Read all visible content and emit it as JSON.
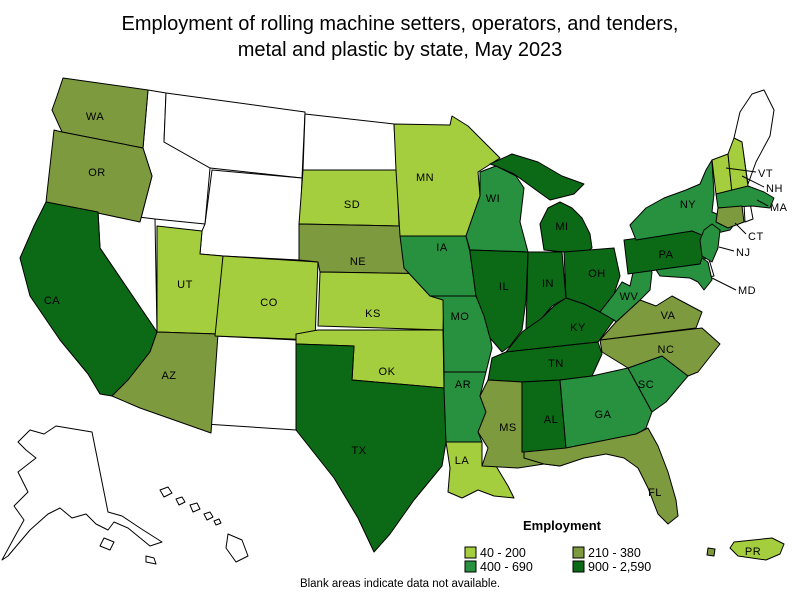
{
  "title": {
    "line1": "Employment of rolling machine setters, operators, and tenders,",
    "line2": "metal and plastic by state, May 2023"
  },
  "legend": {
    "title": "Employment",
    "items": [
      {
        "label": "40 - 200",
        "color": "#A5CE3F"
      },
      {
        "label": "210 - 380",
        "color": "#7D9A3E"
      },
      {
        "label": "400 - 690",
        "color": "#28913F"
      },
      {
        "label": "900 - 2,590",
        "color": "#0C6A16"
      }
    ]
  },
  "footnote": "Blank areas indicate data not available.",
  "map": {
    "background": "#FFFFFF",
    "border_color": "#000000",
    "no_data_fill": "#FFFFFF",
    "states": [
      {
        "abbr": "AK",
        "range": "no data"
      },
      {
        "abbr": "HI",
        "range": "no data"
      },
      {
        "abbr": "ID",
        "range": "no data"
      },
      {
        "abbr": "MT",
        "range": "no data"
      },
      {
        "abbr": "WY",
        "range": "no data"
      },
      {
        "abbr": "NV",
        "range": "no data"
      },
      {
        "abbr": "NM",
        "range": "no data"
      },
      {
        "abbr": "ND",
        "range": "no data"
      },
      {
        "abbr": "ME",
        "range": "no data"
      },
      {
        "abbr": "RI",
        "range": "no data"
      },
      {
        "abbr": "DE",
        "range": "no data"
      },
      {
        "abbr": "WA",
        "range": "210 - 380"
      },
      {
        "abbr": "OR",
        "range": "210 - 380"
      },
      {
        "abbr": "CA",
        "range": "900 - 2,590"
      },
      {
        "abbr": "UT",
        "range": "40 - 200"
      },
      {
        "abbr": "AZ",
        "range": "210 - 380"
      },
      {
        "abbr": "CO",
        "range": "40 - 200"
      },
      {
        "abbr": "SD",
        "range": "40 - 200"
      },
      {
        "abbr": "NE",
        "range": "210 - 380"
      },
      {
        "abbr": "KS",
        "range": "40 - 200"
      },
      {
        "abbr": "OK",
        "range": "40 - 200"
      },
      {
        "abbr": "TX",
        "range": "900 - 2,590"
      },
      {
        "abbr": "MN",
        "range": "40 - 200"
      },
      {
        "abbr": "IA",
        "range": "400 - 690"
      },
      {
        "abbr": "MO",
        "range": "400 - 690"
      },
      {
        "abbr": "AR",
        "range": "400 - 690"
      },
      {
        "abbr": "LA",
        "range": "40 - 200"
      },
      {
        "abbr": "WI",
        "range": "400 - 690"
      },
      {
        "abbr": "IL",
        "range": "900 - 2,590"
      },
      {
        "abbr": "MI",
        "range": "900 - 2,590"
      },
      {
        "abbr": "IN",
        "range": "900 - 2,590"
      },
      {
        "abbr": "OH",
        "range": "900 - 2,590"
      },
      {
        "abbr": "KY",
        "range": "900 - 2,590"
      },
      {
        "abbr": "TN",
        "range": "900 - 2,590"
      },
      {
        "abbr": "MS",
        "range": "210 - 380"
      },
      {
        "abbr": "AL",
        "range": "900 - 2,590"
      },
      {
        "abbr": "GA",
        "range": "400 - 690"
      },
      {
        "abbr": "FL",
        "range": "210 - 380"
      },
      {
        "abbr": "SC",
        "range": "400 - 690"
      },
      {
        "abbr": "NC",
        "range": "210 - 380"
      },
      {
        "abbr": "VA",
        "range": "210 - 380"
      },
      {
        "abbr": "WV",
        "range": "400 - 690"
      },
      {
        "abbr": "PA",
        "range": "900 - 2,590"
      },
      {
        "abbr": "NY",
        "range": "400 - 690"
      },
      {
        "abbr": "VT",
        "range": "40 - 200"
      },
      {
        "abbr": "NH",
        "range": "40 - 200"
      },
      {
        "abbr": "MA",
        "range": "400 - 690"
      },
      {
        "abbr": "CT",
        "range": "210 - 380"
      },
      {
        "abbr": "NJ",
        "range": "400 - 690"
      },
      {
        "abbr": "MD",
        "range": "400 - 690"
      },
      {
        "abbr": "PR",
        "range": "40 - 200"
      },
      {
        "abbr": "VI",
        "range": "210 - 380"
      }
    ]
  },
  "chart_data": {
    "type": "heatmap",
    "title": "Employment of rolling machine setters, operators, and tenders, metal and plastic by state, May 2023",
    "legend_title": "Employment",
    "bins": [
      "40 - 200",
      "210 - 380",
      "400 - 690",
      "900 - 2,590"
    ],
    "series": [
      {
        "name": "40 - 200",
        "states": [
          "UT",
          "CO",
          "KS",
          "OK",
          "SD",
          "MN",
          "LA",
          "VT",
          "NH",
          "PR"
        ]
      },
      {
        "name": "210 - 380",
        "states": [
          "WA",
          "OR",
          "AZ",
          "NE",
          "CT",
          "VA",
          "NC",
          "MS",
          "FL"
        ]
      },
      {
        "name": "400 - 690",
        "states": [
          "WI",
          "IA",
          "MO",
          "AR",
          "WV",
          "SC",
          "GA",
          "NY",
          "MA",
          "NJ",
          "MD"
        ]
      },
      {
        "name": "900 - 2,590",
        "states": [
          "CA",
          "TX",
          "IL",
          "IN",
          "OH",
          "MI",
          "KY",
          "TN",
          "AL",
          "PA"
        ]
      },
      {
        "name": "no data",
        "states": [
          "ID",
          "MT",
          "WY",
          "NV",
          "NM",
          "ND",
          "ME",
          "RI",
          "DE",
          "AK",
          "HI"
        ]
      }
    ],
    "note": "Blank areas indicate data not available."
  }
}
